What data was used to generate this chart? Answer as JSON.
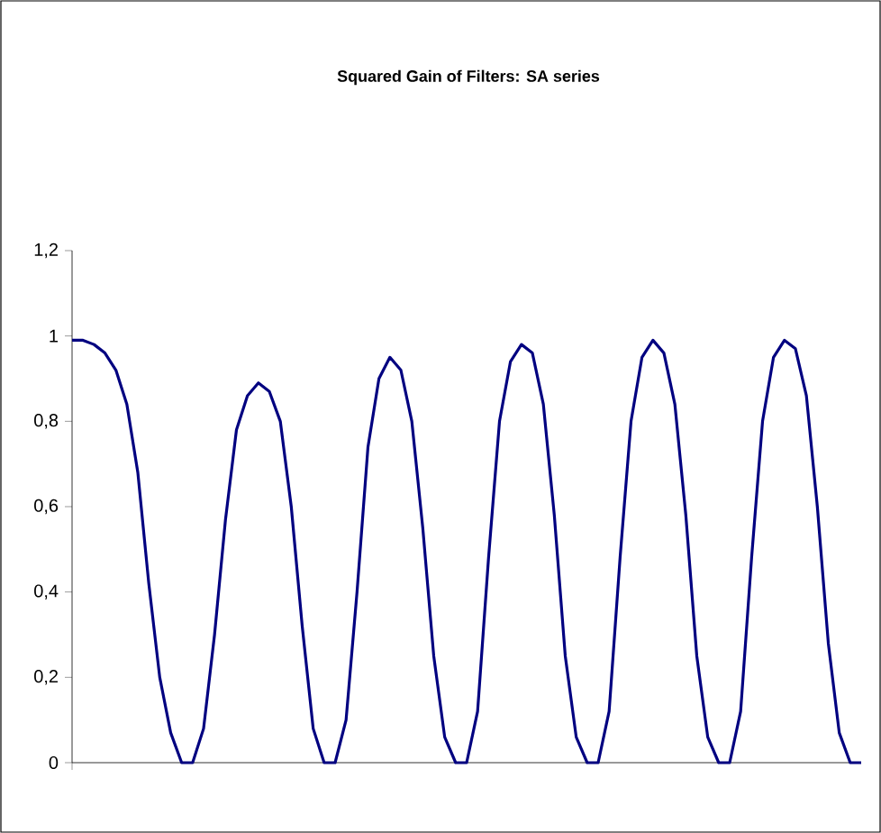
{
  "chart_data": {
    "type": "line",
    "title": "Squared Gain of Filters: SA series",
    "categories": [
      null,
      null,
      null,
      null,
      null,
      null,
      null,
      null,
      null,
      null,
      null,
      null,
      null,
      null,
      null,
      null,
      null,
      null,
      null,
      null,
      null,
      null,
      null,
      null,
      null,
      null,
      null,
      null,
      null,
      null,
      null,
      null,
      null,
      null,
      null,
      null,
      null,
      null,
      null,
      null,
      null,
      null,
      null,
      null,
      null,
      null,
      null,
      null,
      null,
      null,
      null,
      null,
      null,
      null,
      null,
      null,
      null,
      null,
      null,
      null,
      null,
      null,
      null,
      null,
      null,
      null,
      null,
      null,
      null,
      null,
      null,
      null,
      null
    ],
    "series": [
      {
        "color": "#000080",
        "values": [
          0.99,
          0.99,
          0.98,
          0.96,
          0.92,
          0.84,
          0.68,
          0.42,
          0.2,
          0.07,
          0.0,
          0.0,
          0.08,
          0.3,
          0.57,
          0.78,
          0.86,
          0.89,
          0.87,
          0.8,
          0.6,
          0.32,
          0.08,
          0.0,
          0.0,
          0.1,
          0.4,
          0.74,
          0.9,
          0.95,
          0.92,
          0.8,
          0.55,
          0.25,
          0.06,
          0.0,
          0.0,
          0.12,
          0.48,
          0.8,
          0.94,
          0.98,
          0.96,
          0.84,
          0.58,
          0.25,
          0.06,
          0.0,
          0.0,
          0.12,
          0.48,
          0.8,
          0.95,
          0.99,
          0.96,
          0.84,
          0.58,
          0.25,
          0.06,
          0.0,
          0.0,
          0.12,
          0.48,
          0.8,
          0.95,
          0.99,
          0.97,
          0.86,
          0.6,
          0.28,
          0.07,
          0.0,
          0.0
        ]
      }
    ],
    "ylim": [
      0,
      1.2
    ],
    "yticks": [
      0,
      {
        "value": 0.2,
        "label": "0,2"
      },
      {
        "value": 0.4,
        "label": "0,4"
      },
      {
        "value": 0.6,
        "label": "0,6"
      },
      {
        "value": 0.8,
        "label": "0,8"
      },
      1,
      {
        "value": 1.2,
        "label": "1,2"
      }
    ],
    "tick_labels": "y",
    "grid": false,
    "marker": "none",
    "line_style": "solid"
  }
}
